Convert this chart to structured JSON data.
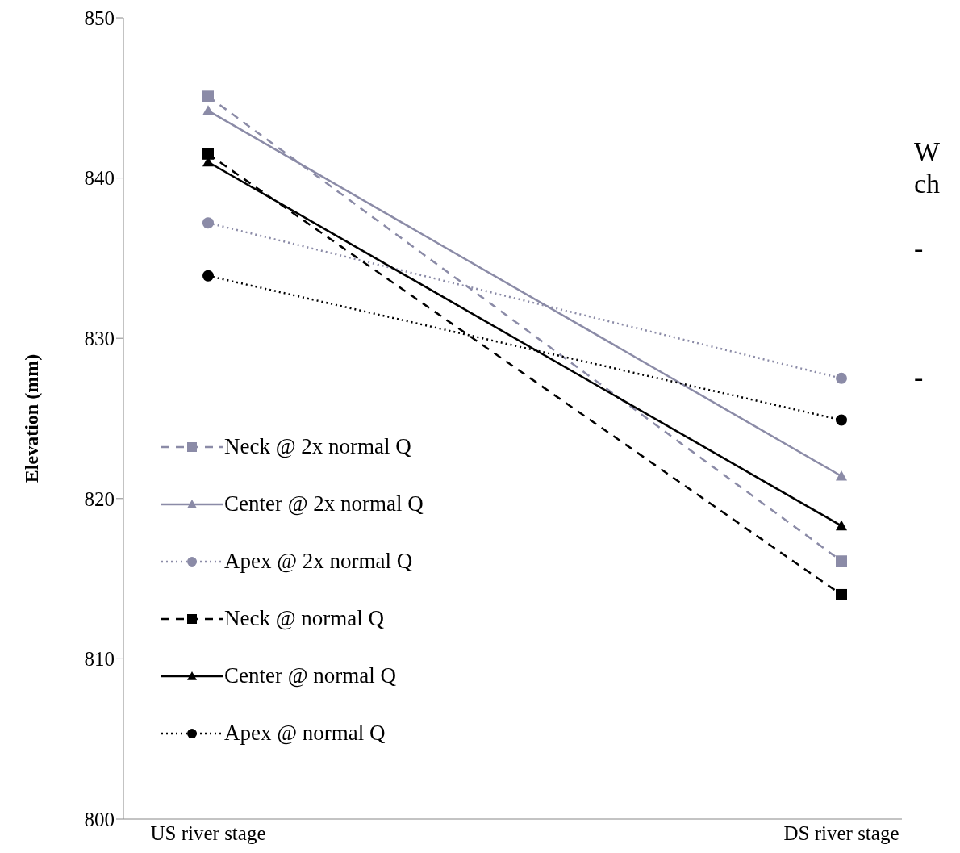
{
  "chart_data": {
    "type": "line",
    "ylabel": "Elevation (mm)",
    "categories": [
      "US river stage",
      "DS river stage"
    ],
    "series": [
      {
        "name": "Neck @ 2x normal Q",
        "color": "#8b8ba7",
        "marker": "square",
        "line_style": "dashed",
        "values": [
          845.1,
          816.1
        ]
      },
      {
        "name": "Center @ 2x normal Q",
        "color": "#8b8ba7",
        "marker": "triangle",
        "line_style": "solid",
        "values": [
          844.2,
          821.4
        ]
      },
      {
        "name": "Apex @ 2x normal Q",
        "color": "#8b8ba7",
        "marker": "circle",
        "line_style": "dotted",
        "values": [
          837.2,
          827.5
        ]
      },
      {
        "name": "Neck @ normal Q",
        "color": "#000000",
        "marker": "square",
        "line_style": "dashed",
        "values": [
          841.5,
          814.0
        ]
      },
      {
        "name": "Center @ normal Q",
        "color": "#000000",
        "marker": "triangle",
        "line_style": "solid",
        "values": [
          841.0,
          818.3
        ]
      },
      {
        "name": "Apex @ normal Q",
        "color": "#000000",
        "marker": "circle",
        "line_style": "dotted",
        "values": [
          833.9,
          824.9
        ]
      }
    ],
    "ylim": [
      800,
      850
    ],
    "yticks": [
      800,
      810,
      820,
      830,
      840,
      850
    ],
    "grid": false,
    "legend": "bottom left",
    "annotations": [
      "W",
      "ch",
      "-",
      "-"
    ]
  }
}
